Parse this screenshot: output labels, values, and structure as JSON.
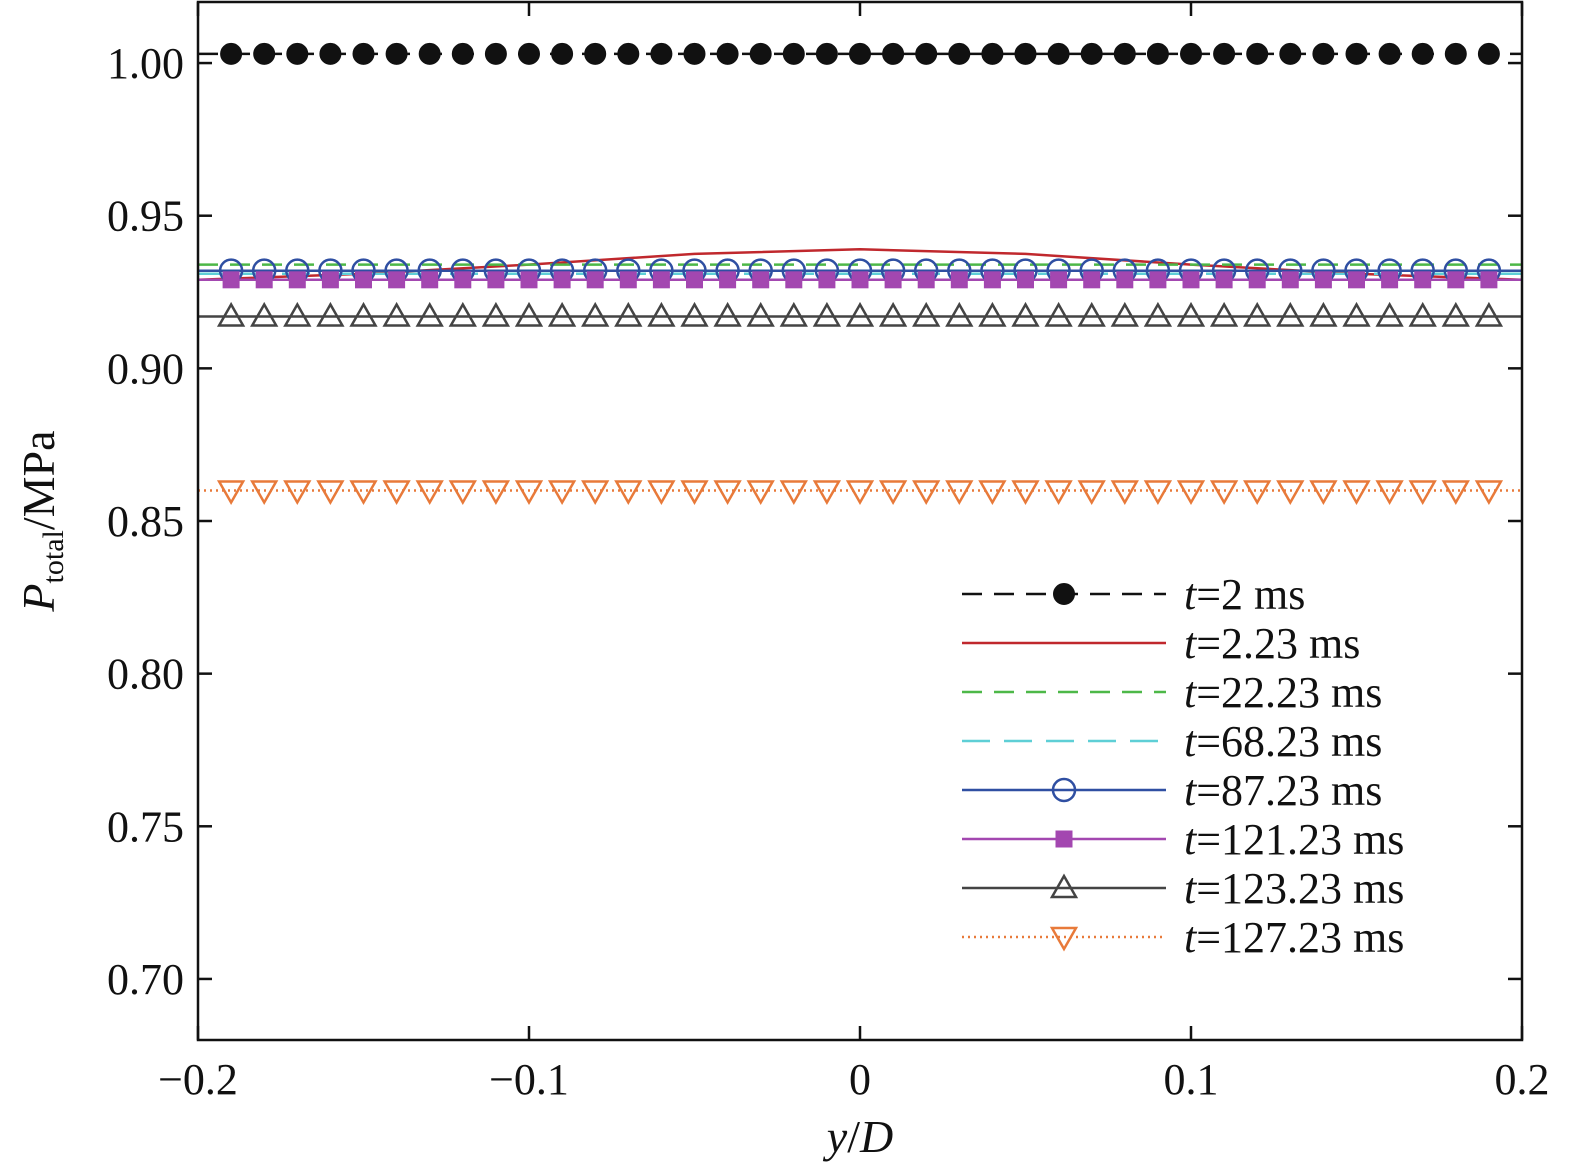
{
  "chart_data": {
    "type": "line",
    "xlabel": {
      "var": "y",
      "slash": "/",
      "den": "D"
    },
    "ylabel": {
      "var": "P",
      "sub": "total",
      "unit": "/MPa"
    },
    "xlim": [
      -0.2,
      0.2
    ],
    "ylim": [
      0.68,
      1.02
    ],
    "xticks": [
      -0.2,
      -0.1,
      0,
      0.1,
      0.2
    ],
    "xtick_labels": [
      "−0.2",
      "−0.1",
      "0",
      "0.1",
      "0.2"
    ],
    "yticks": [
      0.7,
      0.75,
      0.8,
      0.85,
      0.9,
      0.95,
      1.0
    ],
    "ytick_labels": [
      "0.70",
      "0.75",
      "0.80",
      "0.85",
      "0.90",
      "0.95",
      "1.00"
    ],
    "legend_position": "bottom-right",
    "marker_x": [
      -0.19,
      -0.18,
      -0.17,
      -0.16,
      -0.15,
      -0.14,
      -0.13,
      -0.12,
      -0.11,
      -0.1,
      -0.09,
      -0.08,
      -0.07,
      -0.06,
      -0.05,
      -0.04,
      -0.03,
      -0.02,
      -0.01,
      0.0,
      0.01,
      0.02,
      0.03,
      0.04,
      0.05,
      0.06,
      0.07,
      0.08,
      0.09,
      0.1,
      0.11,
      0.12,
      0.13,
      0.14,
      0.15,
      0.16,
      0.17,
      0.18,
      0.19
    ],
    "series": [
      {
        "name": "=2 ms",
        "name_var": "t",
        "color": "#111111",
        "line": "dash",
        "marker": "filled-circle",
        "x": [
          -0.2,
          0.2
        ],
        "y": [
          1.003,
          1.003
        ]
      },
      {
        "name": "=2.23 ms",
        "name_var": "t",
        "color": "#c0282d",
        "line": "solid",
        "marker": "none",
        "x": [
          -0.2,
          -0.15,
          -0.1,
          -0.05,
          0,
          0.05,
          0.1,
          0.15,
          0.2
        ],
        "y": [
          0.929,
          0.931,
          0.934,
          0.9375,
          0.939,
          0.9375,
          0.934,
          0.931,
          0.929
        ]
      },
      {
        "name": "=22.23 ms",
        "name_var": "t",
        "color": "#4db848",
        "line": "dash",
        "marker": "none",
        "x": [
          -0.2,
          0.2
        ],
        "y": [
          0.934,
          0.934
        ]
      },
      {
        "name": "=68.23 ms",
        "name_var": "t",
        "color": "#5ecfd6",
        "line": "longdash",
        "marker": "none",
        "x": [
          -0.2,
          0.2
        ],
        "y": [
          0.931,
          0.931
        ]
      },
      {
        "name": "=87.23 ms",
        "name_var": "t",
        "color": "#2f4fa2",
        "line": "solid",
        "marker": "open-circle",
        "x": [
          -0.2,
          0.2
        ],
        "y": [
          0.932,
          0.932
        ]
      },
      {
        "name": "=121.23 ms",
        "name_var": "t",
        "color": "#a347b0",
        "line": "solid",
        "marker": "filled-square",
        "x": [
          -0.2,
          0.2
        ],
        "y": [
          0.929,
          0.929
        ]
      },
      {
        "name": "=123.23 ms",
        "name_var": "t",
        "color": "#444444",
        "line": "solid",
        "marker": "open-triangle-up",
        "x": [
          -0.2,
          0.2
        ],
        "y": [
          0.917,
          0.917
        ]
      },
      {
        "name": "=127.23 ms",
        "name_var": "t",
        "color": "#e87a3a",
        "line": "dot",
        "marker": "open-triangle-down",
        "x": [
          -0.2,
          0.2
        ],
        "y": [
          0.86,
          0.86
        ]
      }
    ]
  }
}
